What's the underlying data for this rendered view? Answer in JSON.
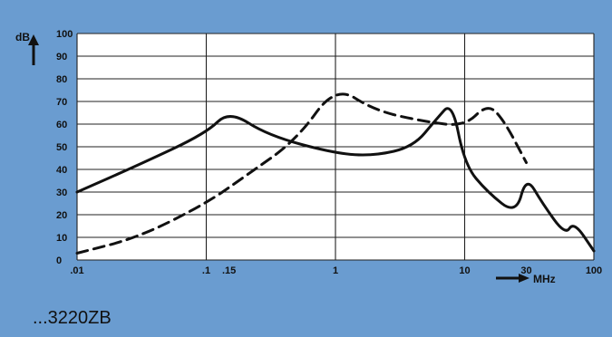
{
  "figure": {
    "caption": "...3220ZB",
    "colors": {
      "background": "#6a9cd0",
      "grid": "#222222",
      "curve": "#111111"
    }
  },
  "chart_data": {
    "type": "line",
    "title": "",
    "ylabel": "dB",
    "xlabel": "MHz",
    "ylim": [
      0,
      100
    ],
    "grid": true,
    "legend": "none",
    "y_ticks": [
      "0",
      "10",
      "20",
      "30",
      "40",
      "50",
      "60",
      "70",
      "80",
      "90",
      "100"
    ],
    "x_ticks": [
      ".01",
      ".1",
      ".15",
      "1",
      "10",
      "30",
      "100"
    ],
    "x_scale": "log",
    "series": [
      {
        "style": "solid",
        "x": [
          0.01,
          0.03,
          0.1,
          0.15,
          0.3,
          1,
          2,
          4,
          6,
          8,
          10,
          15,
          25,
          30,
          40,
          60,
          70,
          100
        ],
        "y": [
          30,
          42,
          56,
          66,
          55,
          47,
          46,
          50,
          62,
          70,
          42,
          30,
          20,
          37,
          25,
          11,
          17,
          4
        ]
      },
      {
        "style": "dashed",
        "x": [
          0.01,
          0.03,
          0.1,
          0.2,
          0.5,
          1,
          2,
          5,
          10,
          15,
          20,
          30
        ],
        "y": [
          3,
          10,
          25,
          37,
          53,
          77,
          66,
          61,
          59,
          69,
          62,
          43
        ]
      }
    ]
  }
}
